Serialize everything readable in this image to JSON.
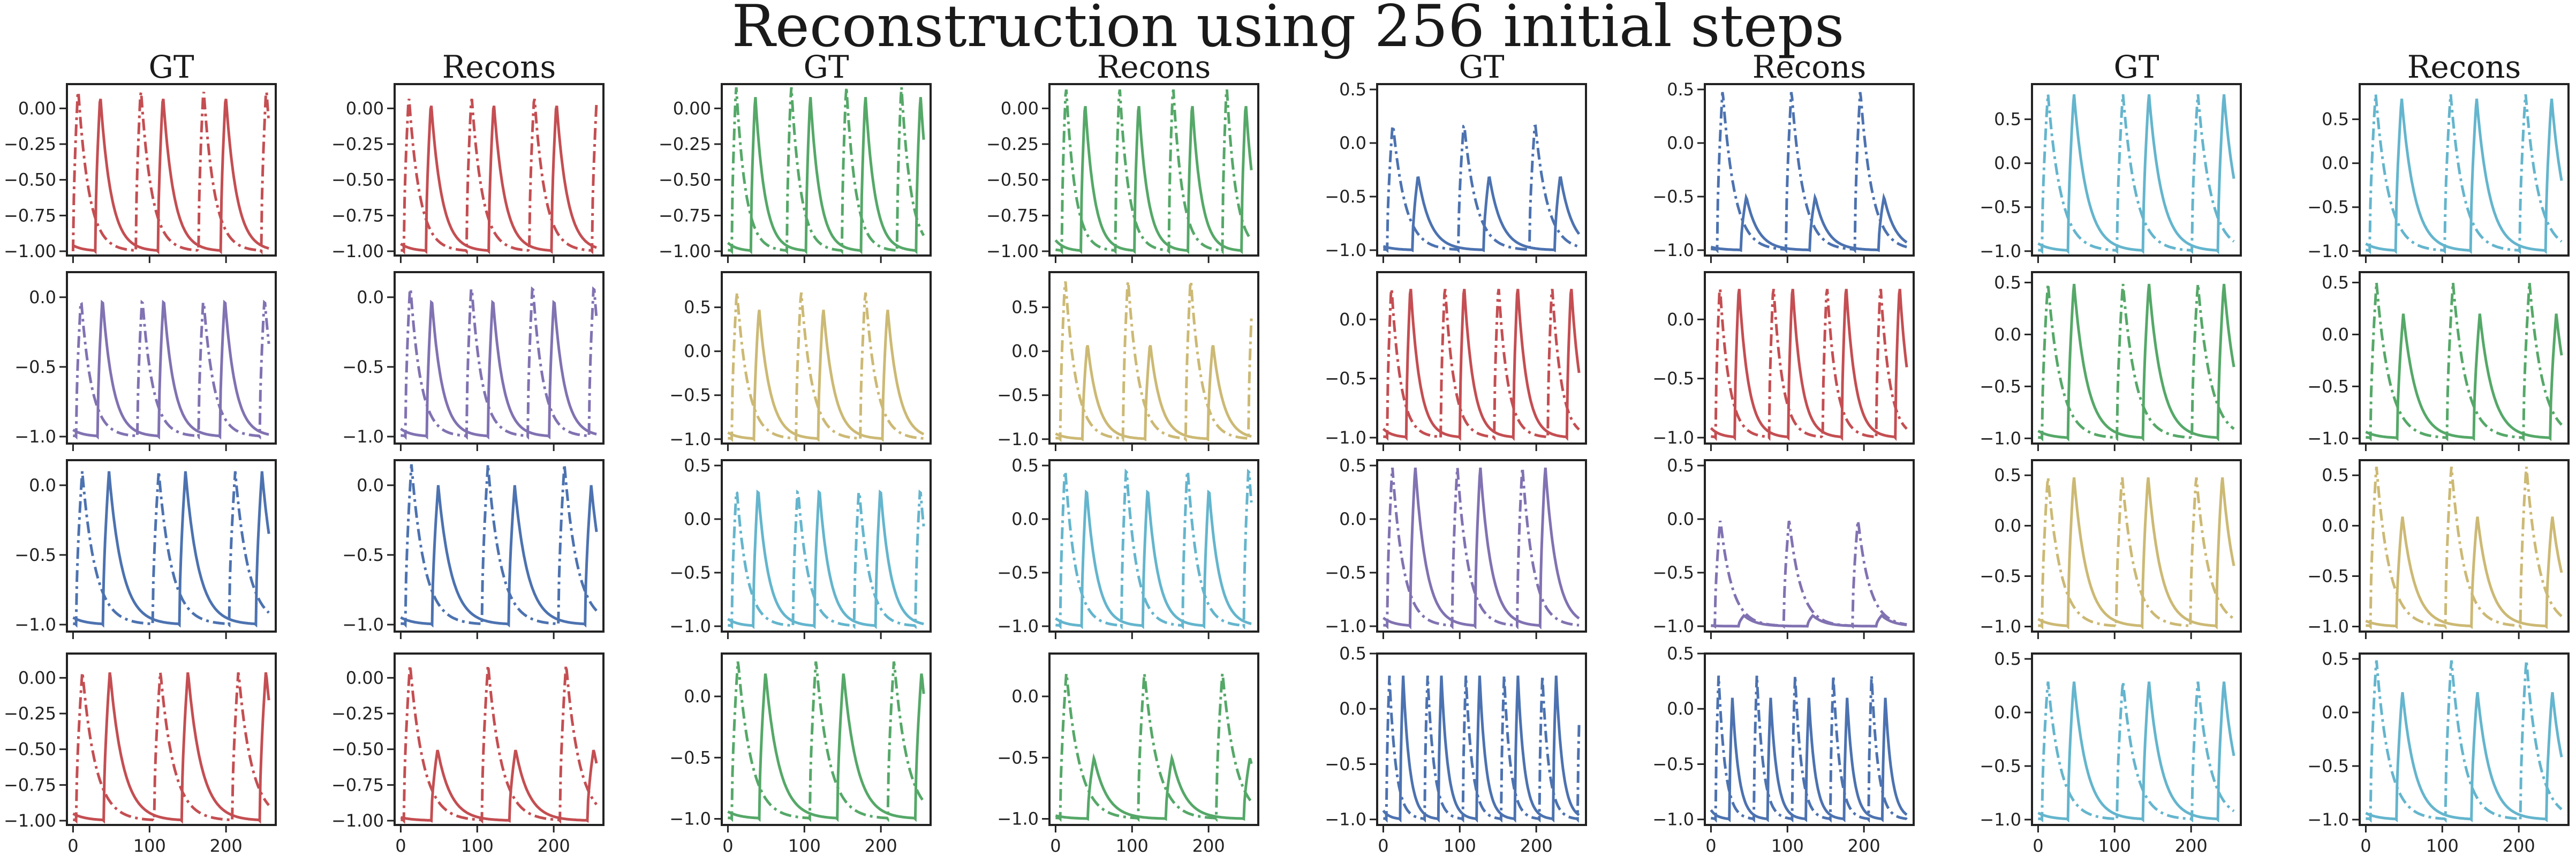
{
  "figure": {
    "title": "Reconstruction using 256 initial steps"
  },
  "chart_data": {
    "type": "line",
    "title": "Reconstruction using 256 initial steps",
    "layout": {
      "rows": 4,
      "columns": 8
    },
    "column_titles": [
      "GT",
      "Recons",
      "GT",
      "Recons",
      "GT",
      "Recons",
      "GT",
      "Recons"
    ],
    "xlim": [
      -8,
      265
    ],
    "x_ticks": [
      0,
      100,
      200
    ],
    "line_styles": {
      "solid": "observed component",
      "dashdot": "second component"
    },
    "palette": {
      "red": "#c44e52",
      "green": "#55a868",
      "blue": "#4c72b0",
      "cyan": "#64b5cd",
      "purple": "#8172b2",
      "gold": "#ccb974"
    },
    "y_ticks_sets": {
      "fine": [
        0.0,
        -0.25,
        -0.5,
        -0.75,
        -1.0
      ],
      "fine_labels": [
        "0.00",
        "−0.25",
        "−0.50",
        "−0.75",
        "−1.00"
      ],
      "coarse": [
        0.0,
        -0.5,
        -1.0
      ],
      "coarse_labels": [
        "0.0",
        "−0.5",
        "−1.0"
      ],
      "coarse_top": [
        0.5,
        0.0,
        -0.5,
        -1.0
      ],
      "coarse_top_labels": [
        "0.5",
        "0.0",
        "−0.5",
        "−1.0"
      ]
    },
    "x_tick_labels": [
      "0",
      "100",
      "200"
    ],
    "panels": [
      {
        "row": 0,
        "col": 0,
        "title": "GT",
        "color": "red",
        "ylim": [
          -1.03,
          0.17
        ],
        "yticks": "fine",
        "period": 82,
        "offset": 0,
        "peak_dash": 0.15,
        "peak_solid": 0.1
      },
      {
        "row": 0,
        "col": 1,
        "title": "Recons",
        "color": "red",
        "ylim": [
          -1.03,
          0.17
        ],
        "yticks": "fine",
        "period": 82,
        "offset": 4,
        "peak_dash": 0.1,
        "peak_solid": 0.05
      },
      {
        "row": 0,
        "col": 2,
        "title": "GT",
        "color": "green",
        "ylim": [
          -1.03,
          0.17
        ],
        "yticks": "fine",
        "period": 72,
        "offset": 5,
        "peak_dash": 0.17,
        "peak_solid": 0.1
      },
      {
        "row": 0,
        "col": 3,
        "title": "Recons",
        "color": "green",
        "ylim": [
          -1.03,
          0.17
        ],
        "yticks": "fine",
        "period": 70,
        "offset": 8,
        "peak_dash": 0.17,
        "peak_solid": 0.05
      },
      {
        "row": 0,
        "col": 4,
        "title": "GT",
        "color": "blue",
        "ylim": [
          -1.05,
          0.55
        ],
        "yticks": "coarse_top",
        "period": 93,
        "offset": 5,
        "peak_dash": 0.2,
        "peak_solid": -0.3
      },
      {
        "row": 0,
        "col": 5,
        "title": "Recons",
        "color": "blue",
        "ylim": [
          -1.05,
          0.55
        ],
        "yticks": "coarse_top",
        "period": 90,
        "offset": 8,
        "peak_dash": 0.5,
        "peak_solid": -0.5
      },
      {
        "row": 0,
        "col": 6,
        "title": "GT",
        "color": "cyan",
        "ylim": [
          -1.05,
          0.9
        ],
        "yticks": "coarse_top",
        "period": 98,
        "offset": 5,
        "peak_dash": 0.8,
        "peak_solid": 0.8
      },
      {
        "row": 0,
        "col": 7,
        "title": "Recons",
        "color": "cyan",
        "ylim": [
          -1.05,
          0.9
        ],
        "yticks": "coarse_top",
        "period": 98,
        "offset": 5,
        "peak_dash": 0.8,
        "peak_solid": 0.75
      },
      {
        "row": 1,
        "col": 0,
        "title": "",
        "color": "purple",
        "ylim": [
          -1.05,
          0.18
        ],
        "yticks": "coarse",
        "period": 80,
        "offset": 4,
        "peak_dash": 0.0,
        "peak_solid": 0.0
      },
      {
        "row": 1,
        "col": 1,
        "title": "",
        "color": "purple",
        "ylim": [
          -1.05,
          0.18
        ],
        "yticks": "coarse",
        "period": 80,
        "offset": 6,
        "peak_dash": 0.1,
        "peak_solid": 0.0
      },
      {
        "row": 1,
        "col": 2,
        "title": "",
        "color": "gold",
        "ylim": [
          -1.05,
          0.9
        ],
        "yticks": "coarse_top",
        "period": 84,
        "offset": 5,
        "peak_dash": 0.7,
        "peak_solid": 0.5
      },
      {
        "row": 1,
        "col": 3,
        "title": "",
        "color": "gold",
        "ylim": [
          -1.05,
          0.9
        ],
        "yticks": "coarse_top",
        "period": 82,
        "offset": 6,
        "peak_dash": 0.85,
        "peak_solid": 0.1
      },
      {
        "row": 1,
        "col": 4,
        "title": "",
        "color": "red",
        "ylim": [
          -1.05,
          0.4
        ],
        "yticks": "coarse_top",
        "period": 70,
        "offset": 5,
        "peak_dash": 0.3,
        "peak_solid": 0.3
      },
      {
        "row": 1,
        "col": 5,
        "title": "",
        "color": "red",
        "ylim": [
          -1.05,
          0.4
        ],
        "yticks": "coarse_top",
        "period": 70,
        "offset": 6,
        "peak_dash": 0.3,
        "peak_solid": 0.3
      },
      {
        "row": 1,
        "col": 6,
        "title": "",
        "color": "green",
        "ylim": [
          -1.05,
          0.6
        ],
        "yticks": "coarse_top",
        "period": 98,
        "offset": 5,
        "peak_dash": 0.5,
        "peak_solid": 0.5
      },
      {
        "row": 1,
        "col": 7,
        "title": "",
        "color": "green",
        "ylim": [
          -1.05,
          0.6
        ],
        "yticks": "coarse_top",
        "period": 100,
        "offset": 6,
        "peak_dash": 0.5,
        "peak_solid": 0.2
      },
      {
        "row": 2,
        "col": 0,
        "title": "",
        "color": "blue",
        "ylim": [
          -1.05,
          0.18
        ],
        "yticks": "coarse",
        "period": 100,
        "offset": 4,
        "peak_dash": 0.1,
        "peak_solid": 0.1
      },
      {
        "row": 2,
        "col": 1,
        "title": "",
        "color": "blue",
        "ylim": [
          -1.05,
          0.18
        ],
        "yticks": "coarse",
        "period": 100,
        "offset": 6,
        "peak_dash": 0.15,
        "peak_solid": 0.0
      },
      {
        "row": 2,
        "col": 2,
        "title": "",
        "color": "cyan",
        "ylim": [
          -1.05,
          0.55
        ],
        "yticks": "coarse_top",
        "period": 80,
        "offset": 5,
        "peak_dash": 0.3,
        "peak_solid": 0.3
      },
      {
        "row": 2,
        "col": 3,
        "title": "",
        "color": "cyan",
        "ylim": [
          -1.05,
          0.55
        ],
        "yticks": "coarse_top",
        "period": 80,
        "offset": 6,
        "peak_dash": 0.5,
        "peak_solid": 0.3
      },
      {
        "row": 2,
        "col": 4,
        "title": "",
        "color": "purple",
        "ylim": [
          -1.05,
          0.55
        ],
        "yticks": "coarse_top",
        "period": 85,
        "offset": 5,
        "peak_dash": 0.5,
        "peak_solid": 0.5
      },
      {
        "row": 2,
        "col": 5,
        "title": "",
        "color": "purple",
        "ylim": [
          -1.05,
          0.55
        ],
        "yticks": "coarse_top",
        "period": 90,
        "offset": 5,
        "peak_dash": 0.0,
        "peak_solid": -0.9
      },
      {
        "row": 2,
        "col": 6,
        "title": "",
        "color": "gold",
        "ylim": [
          -1.05,
          0.65
        ],
        "yticks": "coarse_top",
        "period": 97,
        "offset": 5,
        "peak_dash": 0.5,
        "peak_solid": 0.5
      },
      {
        "row": 2,
        "col": 7,
        "title": "",
        "color": "gold",
        "ylim": [
          -1.05,
          0.65
        ],
        "yticks": "coarse_top",
        "period": 98,
        "offset": 6,
        "peak_dash": 0.6,
        "peak_solid": 0.1
      },
      {
        "row": 3,
        "col": 0,
        "title": "",
        "color": "red",
        "ylim": [
          -1.03,
          0.17
        ],
        "yticks": "fine",
        "period": 102,
        "offset": 4,
        "peak_dash": 0.05,
        "peak_solid": 0.05
      },
      {
        "row": 3,
        "col": 1,
        "title": "",
        "color": "red",
        "ylim": [
          -1.03,
          0.17
        ],
        "yticks": "fine",
        "period": 102,
        "offset": 4,
        "peak_dash": 0.1,
        "peak_solid": -0.5
      },
      {
        "row": 3,
        "col": 2,
        "title": "",
        "color": "green",
        "ylim": [
          -1.05,
          0.35
        ],
        "yticks": "coarse",
        "period": 102,
        "offset": 5,
        "peak_dash": 0.3,
        "peak_solid": 0.2
      },
      {
        "row": 3,
        "col": 3,
        "title": "",
        "color": "green",
        "ylim": [
          -1.05,
          0.35
        ],
        "yticks": "coarse",
        "period": 102,
        "offset": 6,
        "peak_dash": 0.2,
        "peak_solid": -0.5
      },
      {
        "row": 3,
        "col": 4,
        "title": "",
        "color": "blue",
        "ylim": [
          -1.05,
          0.5
        ],
        "yticks": "coarse_top",
        "period": 50,
        "offset": 4,
        "peak_dash": 0.3,
        "peak_solid": 0.3
      },
      {
        "row": 3,
        "col": 5,
        "title": "",
        "color": "blue",
        "ylim": [
          -1.05,
          0.5
        ],
        "yticks": "coarse_top",
        "period": 50,
        "offset": 6,
        "peak_dash": 0.3,
        "peak_solid": 0.1
      },
      {
        "row": 3,
        "col": 6,
        "title": "",
        "color": "cyan",
        "ylim": [
          -1.05,
          0.55
        ],
        "yticks": "coarse_top",
        "period": 98,
        "offset": 5,
        "peak_dash": 0.3,
        "peak_solid": 0.3
      },
      {
        "row": 3,
        "col": 7,
        "title": "",
        "color": "cyan",
        "ylim": [
          -1.05,
          0.55
        ],
        "yticks": "coarse_top",
        "period": 98,
        "offset": 6,
        "peak_dash": 0.5,
        "peak_solid": 0.2
      }
    ]
  }
}
